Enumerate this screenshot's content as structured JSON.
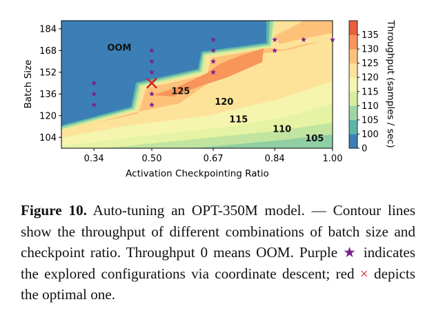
{
  "chart_data": {
    "type": "heatmap",
    "xlabel": "Activation Checkpointing Ratio",
    "ylabel": "Batch Size",
    "xticks": [
      "0.34",
      "0.50",
      "0.67",
      "0.84",
      "1.00"
    ],
    "xtick_values": [
      0.34,
      0.5,
      0.67,
      0.84,
      1.0
    ],
    "xlim": [
      0.25,
      1.0
    ],
    "yticks": [
      "104",
      "120",
      "136",
      "152",
      "168",
      "184"
    ],
    "ytick_values": [
      104,
      120,
      136,
      152,
      168,
      184
    ],
    "ylim": [
      96,
      190
    ],
    "colorbar": {
      "label": "Throughput (samples / sec)",
      "ticks": [
        "0",
        "100",
        "105",
        "110",
        "115",
        "120",
        "125",
        "130",
        "135"
      ],
      "colors": [
        "#3b7fb6",
        "#5cb6a8",
        "#9fd6a4",
        "#d7ee9c",
        "#f5f5b0",
        "#fde39a",
        "#fdc27a",
        "#f7955a",
        "#e8603d"
      ]
    },
    "contour_labels": [
      {
        "text": "OOM",
        "x": 0.41,
        "y": 170
      },
      {
        "text": "125",
        "x": 0.58,
        "y": 138
      },
      {
        "text": "120",
        "x": 0.7,
        "y": 130
      },
      {
        "text": "115",
        "x": 0.74,
        "y": 117
      },
      {
        "text": "110",
        "x": 0.86,
        "y": 110
      },
      {
        "text": "105",
        "x": 0.95,
        "y": 103
      }
    ],
    "explored": [
      {
        "x": 0.34,
        "y": 144
      },
      {
        "x": 0.34,
        "y": 136
      },
      {
        "x": 0.34,
        "y": 128
      },
      {
        "x": 0.5,
        "y": 168
      },
      {
        "x": 0.5,
        "y": 160
      },
      {
        "x": 0.5,
        "y": 152
      },
      {
        "x": 0.5,
        "y": 136
      },
      {
        "x": 0.5,
        "y": 128
      },
      {
        "x": 0.67,
        "y": 176
      },
      {
        "x": 0.67,
        "y": 168
      },
      {
        "x": 0.67,
        "y": 160
      },
      {
        "x": 0.67,
        "y": 152
      },
      {
        "x": 0.84,
        "y": 176
      },
      {
        "x": 0.84,
        "y": 168
      },
      {
        "x": 0.92,
        "y": 176
      },
      {
        "x": 1.0,
        "y": 176
      }
    ],
    "optimal": {
      "x": 0.5,
      "y": 144
    }
  },
  "caption": {
    "label": "Figure 10.",
    "text1": " Auto-tuning an OPT-350M model. — Contour lines show the throughput of different combinations of batch size and checkpoint ratio. Throughput 0 means OOM. Purple ",
    "star": "★",
    "text2": " indicates the explored configurations via coordinate descent; red ",
    "cross": "×",
    "text3": " depicts the optimal one."
  }
}
